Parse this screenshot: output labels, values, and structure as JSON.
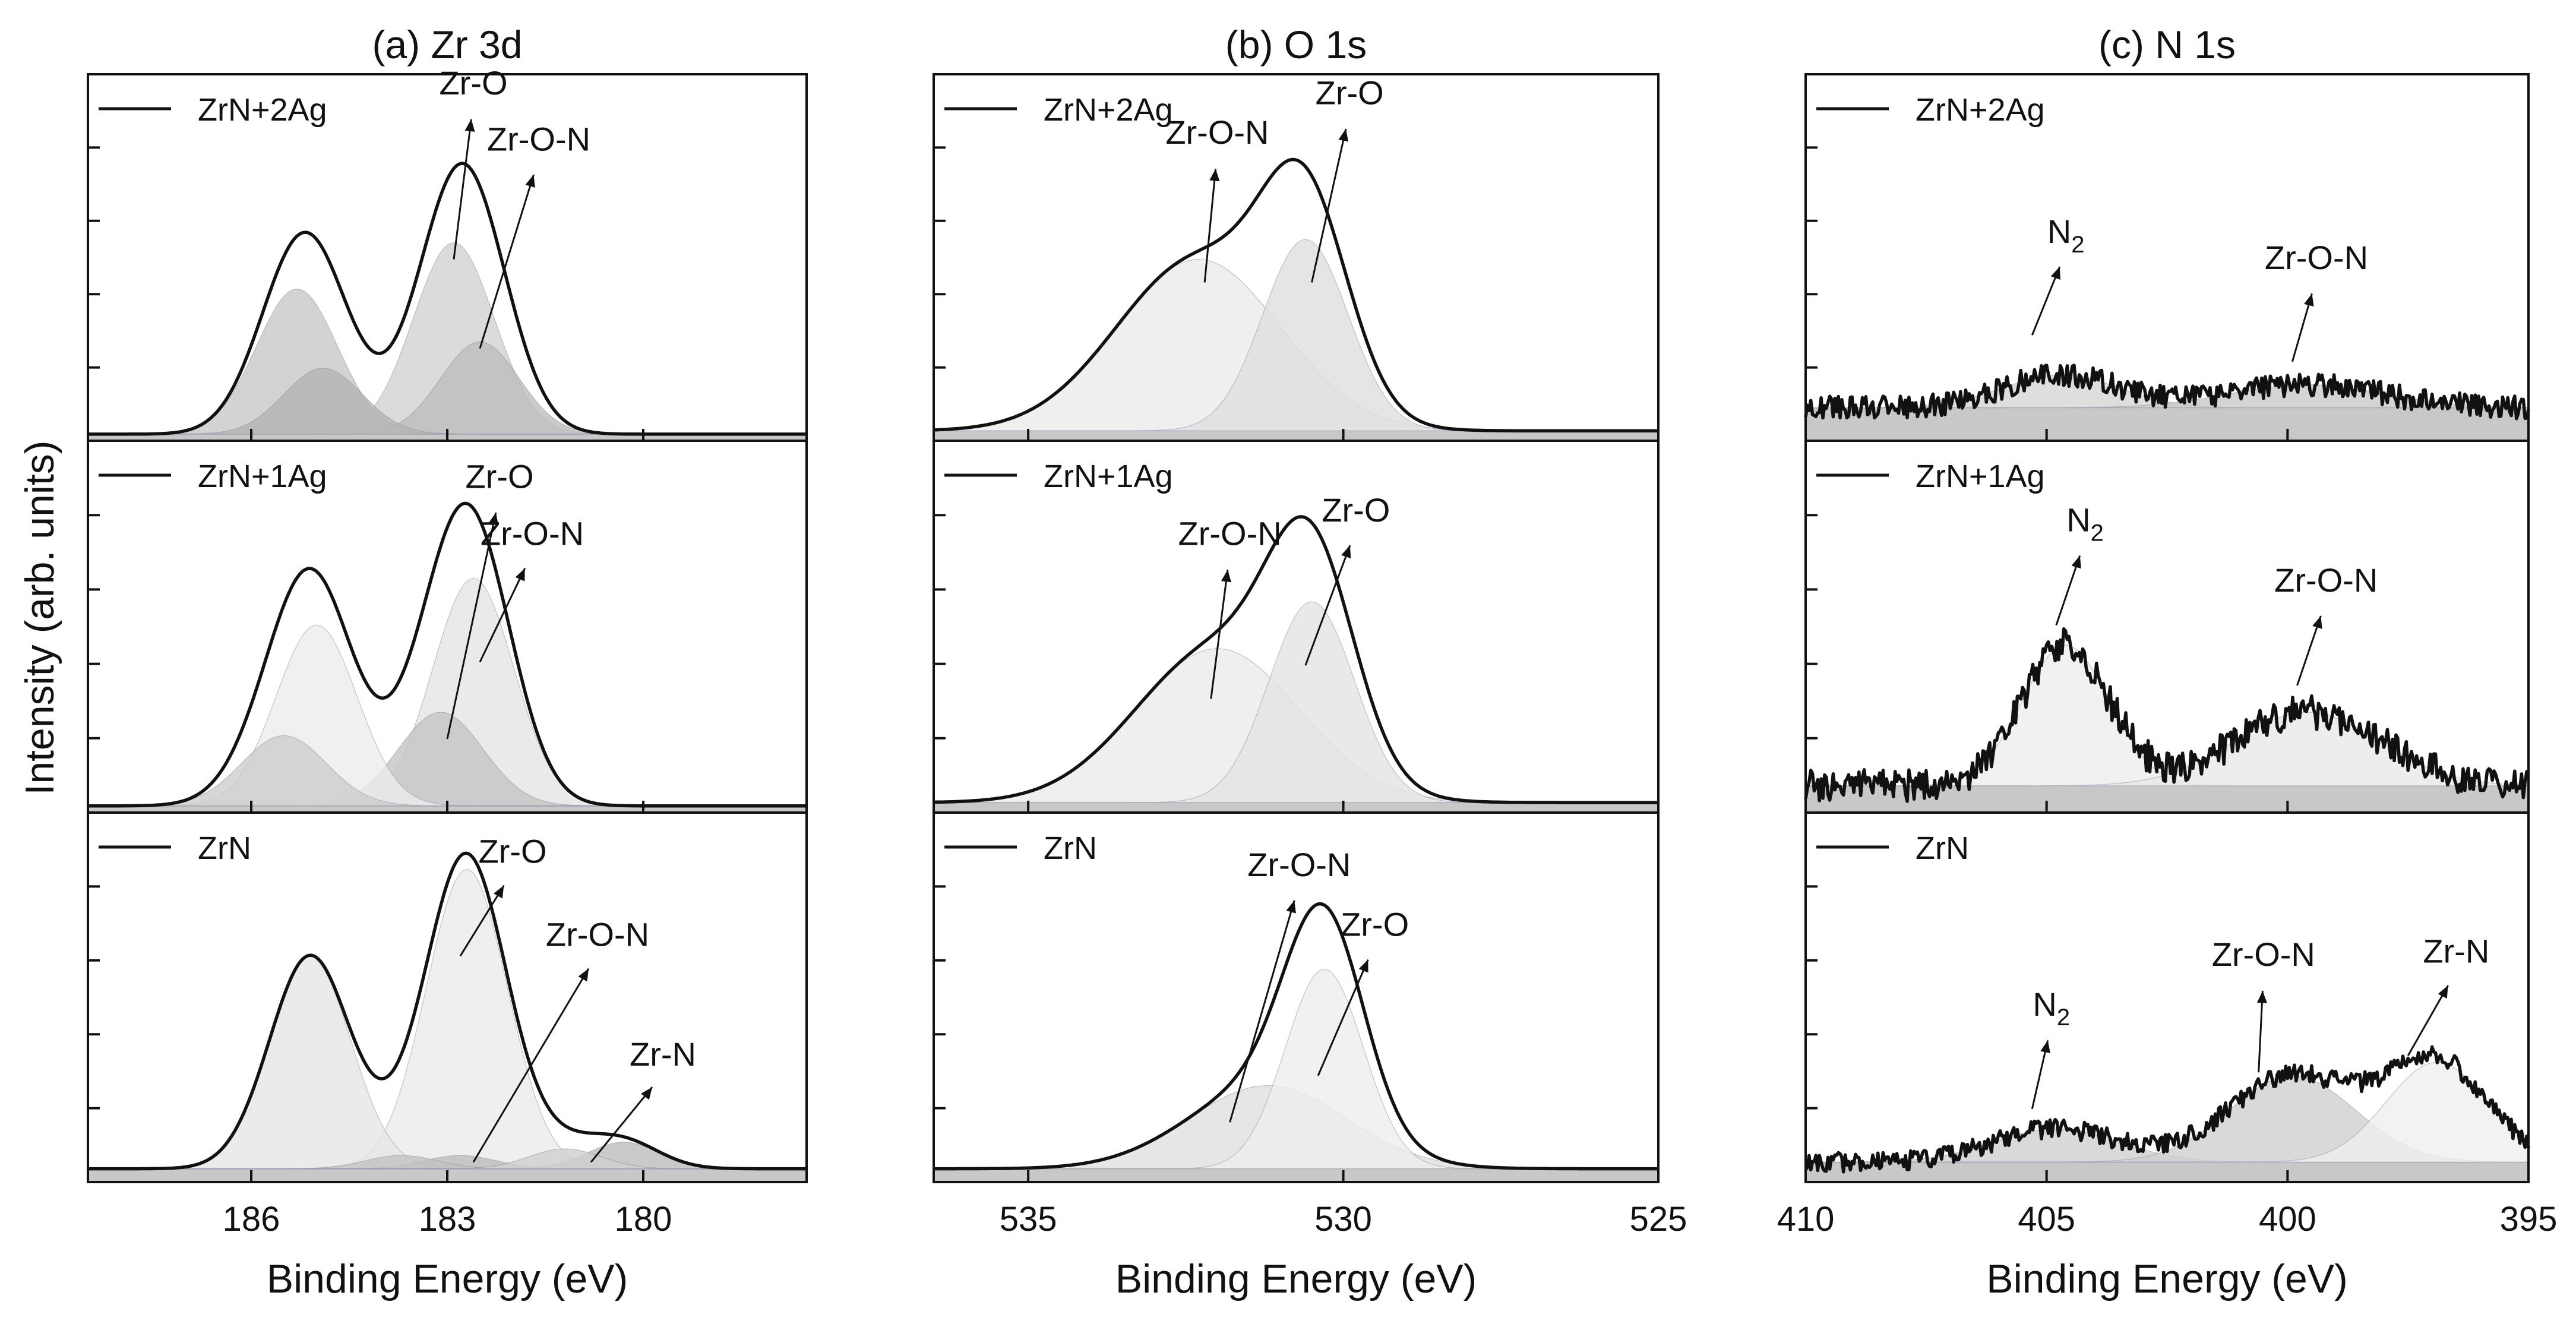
{
  "ylabel": "Intensity (arb. units)",
  "chart_data": [
    {
      "type": "line",
      "title": "(a) Zr 3d",
      "xlabel": "Binding Energy (eV)",
      "ylabel": "Intensity (arb. units)",
      "xlim": [
        188.5,
        177.5
      ],
      "xticks": [
        186,
        183,
        180
      ],
      "tick_labels": [
        "186",
        "183",
        "180"
      ],
      "subplots": [
        {
          "legend": "ZrN+2Ag",
          "baseline": 0.02,
          "components": [
            {
              "name": "Zr 3d5/2 Zr-O",
              "center": 182.9,
              "height": 0.58,
              "width": 0.62,
              "color": "#d2d2d2"
            },
            {
              "name": "Zr 3d5/2 Zr-O-N",
              "center": 182.5,
              "height": 0.28,
              "width": 0.6,
              "color": "#bdbdbd"
            },
            {
              "name": "Zr 3d3/2 Zr-O",
              "center": 185.3,
              "height": 0.44,
              "width": 0.62,
              "color": "#c8c8c8"
            },
            {
              "name": "Zr 3d3/2 Zr-O-N",
              "center": 184.9,
              "height": 0.2,
              "width": 0.6,
              "color": "#b4b4b4"
            }
          ],
          "annotations": [
            {
              "text": "Zr-O",
              "x": 182.6,
              "y": 1.05,
              "tip_x": 182.9,
              "tip_y": 0.55
            },
            {
              "text": "Zr-O-N",
              "x": 181.6,
              "y": 0.88,
              "tip_x": 182.5,
              "tip_y": 0.28
            }
          ]
        },
        {
          "legend": "ZrN+1Ag",
          "baseline": 0.02,
          "components": [
            {
              "name": "Zr 3d5/2 Zr-O",
              "center": 182.6,
              "height": 0.68,
              "width": 0.62,
              "color": "#e5e5e5"
            },
            {
              "name": "Zr 3d5/2 Zr-O-N",
              "center": 183.1,
              "height": 0.28,
              "width": 0.65,
              "color": "#c4c4c4"
            },
            {
              "name": "Zr 3d3/2 Zr-O",
              "center": 185.0,
              "height": 0.54,
              "width": 0.62,
              "color": "#ececec"
            },
            {
              "name": "Zr 3d3/2 Zr-O-N",
              "center": 185.5,
              "height": 0.21,
              "width": 0.65,
              "color": "#cdcdcd"
            }
          ],
          "annotations": [
            {
              "text": "Zr-O",
              "x": 182.2,
              "y": 0.97,
              "tip_x": 183.0,
              "tip_y": 0.22
            },
            {
              "text": "Zr-O-N",
              "x": 181.7,
              "y": 0.8,
              "tip_x": 182.5,
              "tip_y": 0.45
            }
          ]
        },
        {
          "legend": "ZrN",
          "baseline": 0.04,
          "components": [
            {
              "name": "Zr 3d5/2 Zr-O",
              "center": 182.7,
              "height": 0.9,
              "width": 0.62,
              "color": "#ebebeb"
            },
            {
              "name": "Zr 3d3/2 Zr-O",
              "center": 185.1,
              "height": 0.64,
              "width": 0.62,
              "color": "#e6e6e6"
            },
            {
              "name": "Zr-O-N",
              "center": 182.8,
              "height": 0.04,
              "width": 0.55,
              "color": "#bdbdbd"
            },
            {
              "name": "Zr 3d3/2 Zr-O-N",
              "center": 183.7,
              "height": 0.04,
              "width": 0.55,
              "color": "#c2c2c2"
            },
            {
              "name": "Zr-N",
              "center": 180.3,
              "height": 0.08,
              "width": 0.55,
              "color": "#bdbdbd"
            },
            {
              "name": "Zr 3d3/2 Zr-N",
              "center": 181.2,
              "height": 0.06,
              "width": 0.55,
              "color": "#cfcfcf"
            }
          ],
          "annotations": [
            {
              "text": "Zr-O",
              "x": 182.0,
              "y": 0.96,
              "tip_x": 182.8,
              "tip_y": 0.68
            },
            {
              "text": "Zr-O-N",
              "x": 180.7,
              "y": 0.71,
              "tip_x": 182.6,
              "tip_y": 0.06
            },
            {
              "text": "Zr-N",
              "x": 179.7,
              "y": 0.35,
              "tip_x": 180.8,
              "tip_y": 0.06
            }
          ]
        }
      ]
    },
    {
      "type": "line",
      "title": "(b) O 1s",
      "xlabel": "Binding Energy (eV)",
      "ylabel": "Intensity (arb. units)",
      "xlim": [
        536.5,
        525
      ],
      "xticks": [
        535,
        530,
        525
      ],
      "tick_labels": [
        "535",
        "530",
        "525"
      ],
      "subplots": [
        {
          "legend": "ZrN+2Ag",
          "baseline": 0.03,
          "components": [
            {
              "name": "Zr-O-N",
              "center": 532.3,
              "height": 0.52,
              "width": 1.3,
              "color": "#ebebeb"
            },
            {
              "name": "Zr-O",
              "center": 530.6,
              "height": 0.58,
              "width": 0.68,
              "color": "#dedede"
            }
          ],
          "annotations": [
            {
              "text": "Zr-O-N",
              "x": 532.0,
              "y": 0.9,
              "tip_x": 532.2,
              "tip_y": 0.48
            },
            {
              "text": "Zr-O",
              "x": 529.9,
              "y": 1.02,
              "tip_x": 530.5,
              "tip_y": 0.48
            }
          ]
        },
        {
          "legend": "ZrN+1Ag",
          "baseline": 0.03,
          "components": [
            {
              "name": "Zr-O-N",
              "center": 532.0,
              "height": 0.46,
              "width": 1.3,
              "color": "#ebebeb"
            },
            {
              "name": "Zr-O",
              "center": 530.5,
              "height": 0.6,
              "width": 0.68,
              "color": "#e3e3e3"
            }
          ],
          "annotations": [
            {
              "text": "Zr-O-N",
              "x": 531.8,
              "y": 0.8,
              "tip_x": 532.1,
              "tip_y": 0.34
            },
            {
              "text": "Zr-O",
              "x": 529.8,
              "y": 0.87,
              "tip_x": 530.6,
              "tip_y": 0.44
            }
          ]
        },
        {
          "legend": "ZrN",
          "baseline": 0.04,
          "components": [
            {
              "name": "Zr-O-N",
              "center": 531.2,
              "height": 0.25,
              "width": 1.25,
              "color": "#e0e0e0"
            },
            {
              "name": "Zr-O",
              "center": 530.3,
              "height": 0.6,
              "width": 0.62,
              "color": "#ededed"
            }
          ],
          "annotations": [
            {
              "text": "Zr-O-N",
              "x": 530.7,
              "y": 0.92,
              "tip_x": 531.8,
              "tip_y": 0.18
            },
            {
              "text": "Zr-O",
              "x": 529.5,
              "y": 0.74,
              "tip_x": 530.4,
              "tip_y": 0.32
            }
          ]
        }
      ]
    },
    {
      "type": "line",
      "title": "(c) N 1s",
      "xlabel": "Binding Energy (eV)",
      "ylabel": "Intensity (arb. units)",
      "xlim": [
        410,
        395
      ],
      "xticks": [
        410,
        405,
        400,
        395
      ],
      "tick_labels": [
        "410",
        "405",
        "400",
        "395"
      ],
      "subplots": [
        {
          "legend": "ZrN+2Ag",
          "baseline": 0.1,
          "noise": 0.035,
          "components": [
            {
              "name": "N2",
              "center": 404.7,
              "height": 0.1,
              "width": 1.2,
              "color": "#d6d6d6"
            },
            {
              "name": "Zr-O-N",
              "center": 399.6,
              "height": 0.07,
              "width": 1.6,
              "color": "#c9c9c9"
            }
          ],
          "annotations": [
            {
              "text": "N",
              "sub": "2",
              "x": 404.6,
              "y": 0.6,
              "tip_x": 405.3,
              "tip_y": 0.32
            },
            {
              "text": "Zr-O-N",
              "x": 399.4,
              "y": 0.52,
              "tip_x": 399.9,
              "tip_y": 0.24
            }
          ]
        },
        {
          "legend": "ZrN+1Ag",
          "baseline": 0.08,
          "noise": 0.05,
          "components": [
            {
              "name": "N2",
              "center": 404.6,
              "height": 0.42,
              "width": 0.9,
              "color": "#eeeeee"
            },
            {
              "name": "Zr-O-N",
              "center": 399.6,
              "height": 0.22,
              "width": 1.5,
              "color": "#e8e8e8"
            }
          ],
          "annotations": [
            {
              "text": "N",
              "sub": "2",
              "x": 404.2,
              "y": 0.84,
              "tip_x": 404.8,
              "tip_y": 0.56
            },
            {
              "text": "Zr-O-N",
              "x": 399.2,
              "y": 0.66,
              "tip_x": 399.8,
              "tip_y": 0.38
            }
          ]
        },
        {
          "legend": "ZrN",
          "baseline": 0.06,
          "noise": 0.03,
          "components": [
            {
              "name": "N2",
              "center": 404.8,
              "height": 0.1,
              "width": 1.3,
              "color": "#d0d0d0"
            },
            {
              "name": "Zr-O-N",
              "center": 399.9,
              "height": 0.26,
              "width": 1.3,
              "color": "#cfcfcf"
            },
            {
              "name": "Zr-N",
              "center": 396.9,
              "height": 0.3,
              "width": 1.05,
              "color": "#efefef"
            }
          ],
          "annotations": [
            {
              "text": "N",
              "sub": "2",
              "x": 404.9,
              "y": 0.5,
              "tip_x": 405.3,
              "tip_y": 0.22
            },
            {
              "text": "Zr-O-N",
              "x": 400.5,
              "y": 0.65,
              "tip_x": 400.6,
              "tip_y": 0.33
            },
            {
              "text": "Zr-N",
              "x": 396.5,
              "y": 0.66,
              "tip_x": 397.5,
              "tip_y": 0.38
            }
          ]
        }
      ]
    }
  ]
}
